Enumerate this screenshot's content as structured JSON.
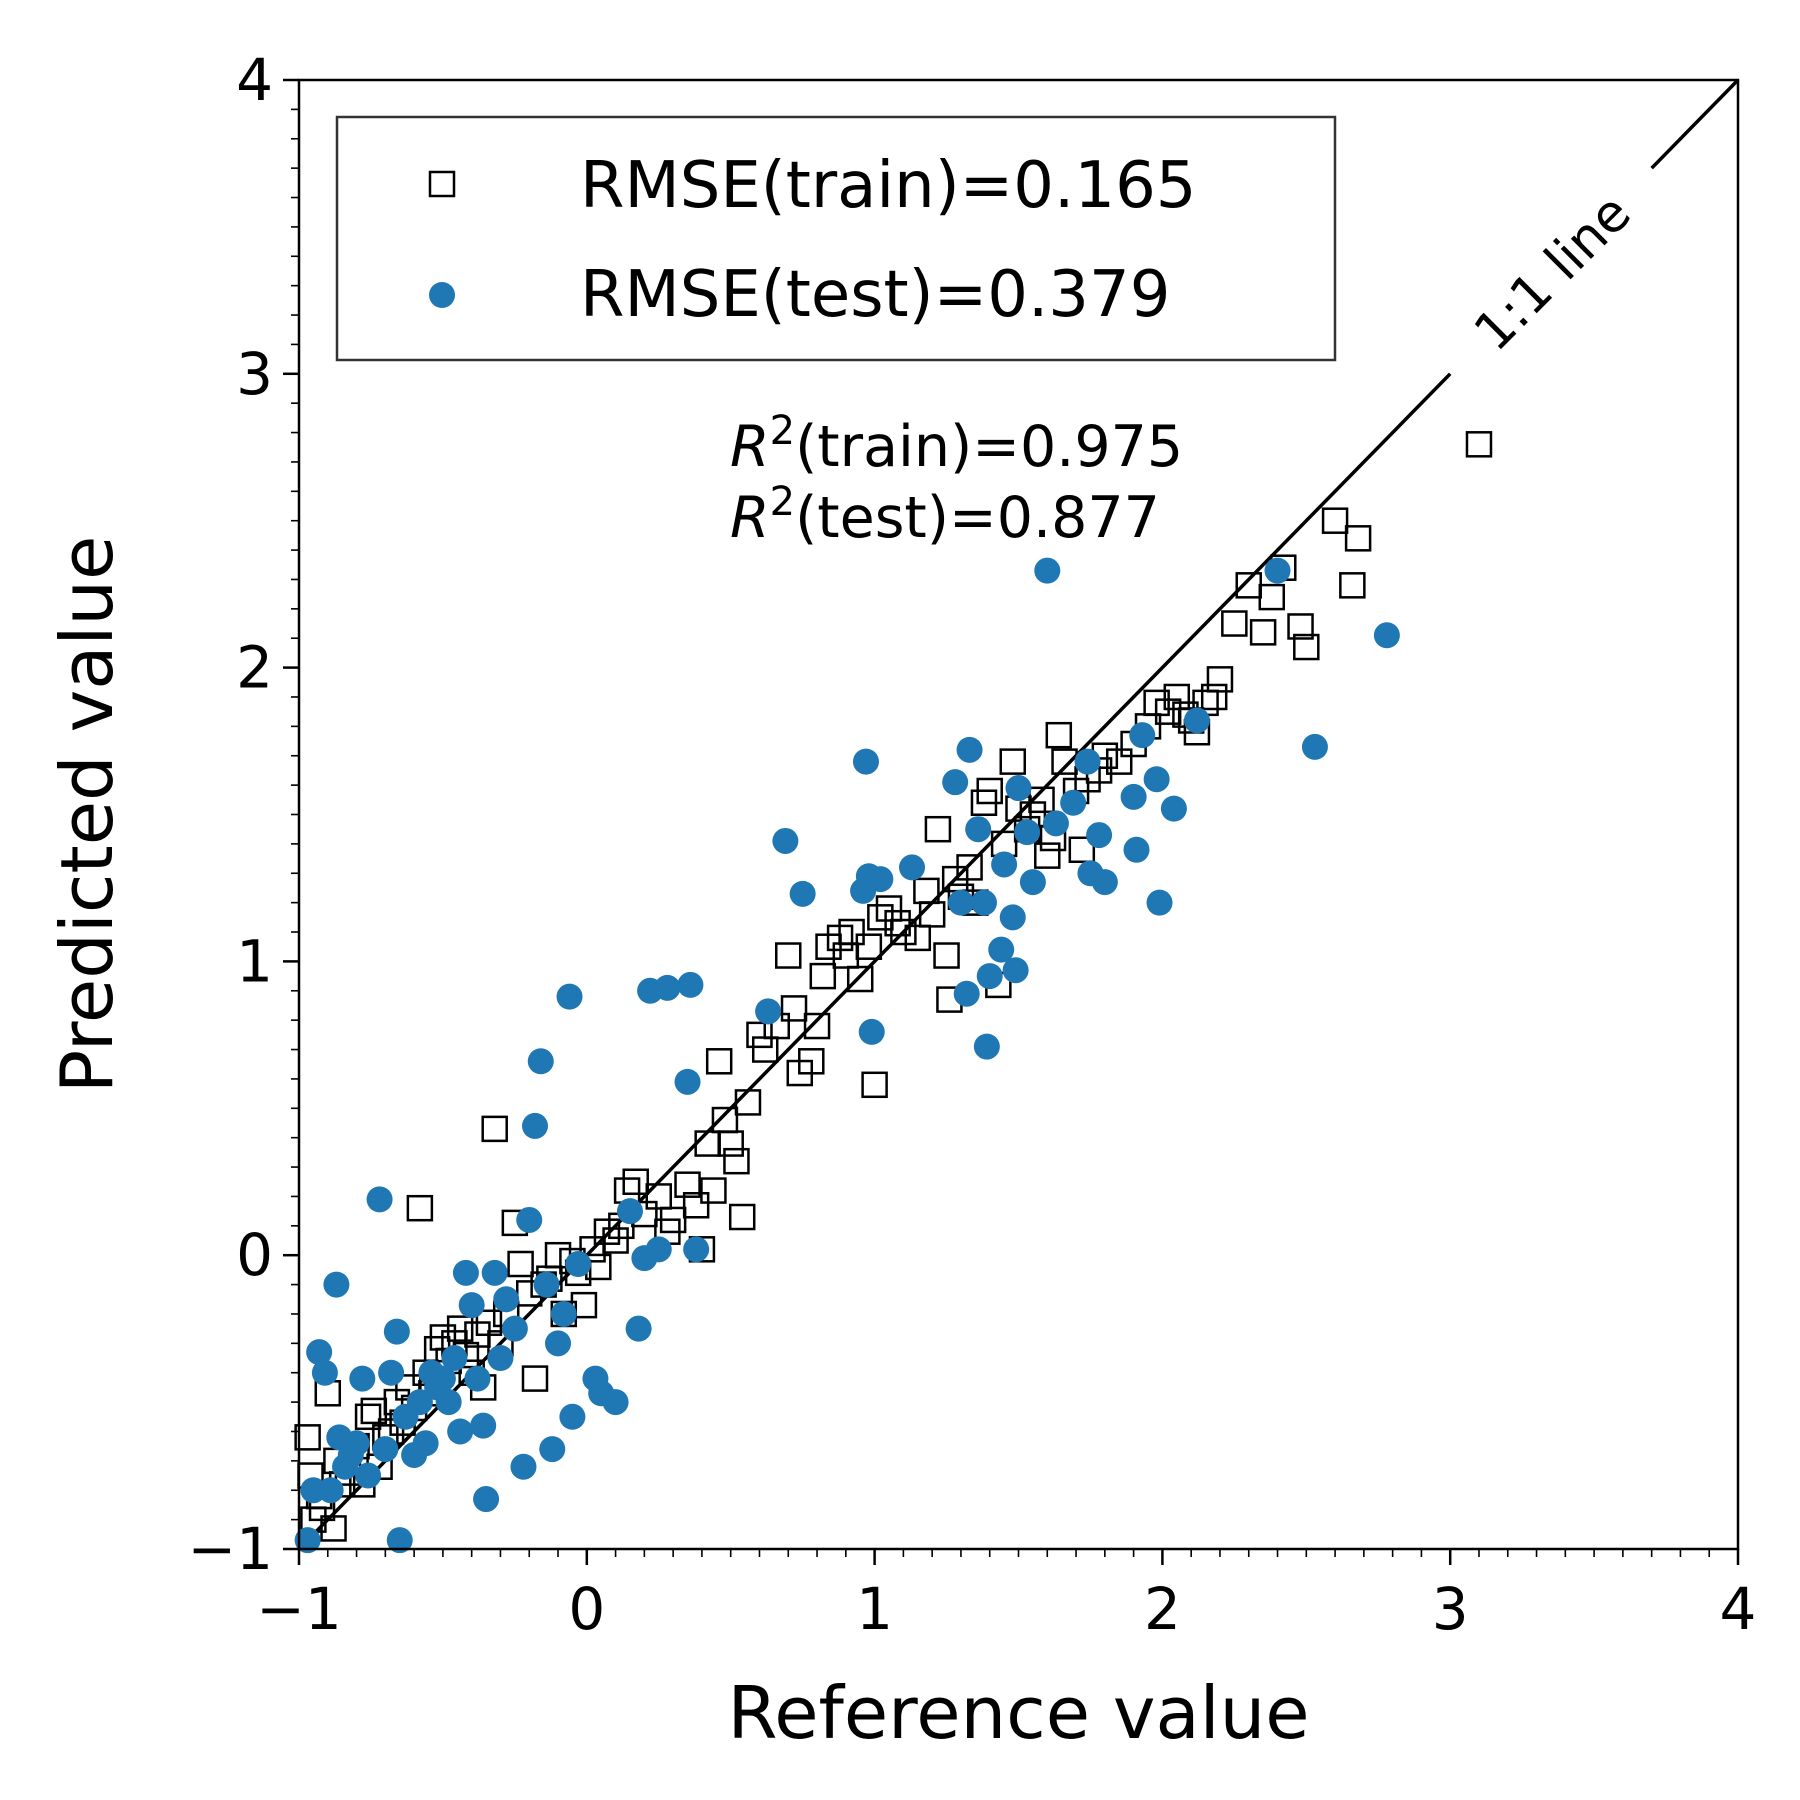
{
  "chart_data": {
    "type": "scatter",
    "xlabel": "Reference value",
    "ylabel": "Predicted value",
    "xlim": [
      -1,
      4
    ],
    "ylim": [
      -1,
      4
    ],
    "xticks": [
      "−1",
      "0",
      "1",
      "2",
      "3",
      "4"
    ],
    "yticks": [
      "−1",
      "0",
      "1",
      "2",
      "3",
      "4"
    ],
    "grid": false,
    "legend_placement": "top-left",
    "identity_line_label": "1:1 line",
    "annotations": {
      "r2_symbol": "R",
      "r2_exponent": "2",
      "r2_train_text": "(train)=0.975",
      "r2_test_text": "(test)=0.877"
    },
    "series": [
      {
        "name": "RMSE(train)=0.165",
        "marker": "open-square",
        "color": "#000000",
        "points": [
          [
            -0.97,
            -0.62
          ],
          [
            -0.96,
            -0.75
          ],
          [
            -0.95,
            -0.9
          ],
          [
            -0.93,
            -0.82
          ],
          [
            -0.92,
            -0.86
          ],
          [
            -0.9,
            -0.47
          ],
          [
            -0.88,
            -0.93
          ],
          [
            -0.87,
            -0.7
          ],
          [
            -0.85,
            -0.78
          ],
          [
            -0.83,
            -0.74
          ],
          [
            -0.8,
            -0.65
          ],
          [
            -0.78,
            -0.78
          ],
          [
            -0.76,
            -0.55
          ],
          [
            -0.74,
            -0.53
          ],
          [
            -0.72,
            -0.72
          ],
          [
            -0.7,
            -0.62
          ],
          [
            -0.68,
            -0.6
          ],
          [
            -0.66,
            -0.5
          ],
          [
            -0.64,
            -0.57
          ],
          [
            -0.62,
            -0.45
          ],
          [
            -0.6,
            -0.52
          ],
          [
            -0.58,
            0.16
          ],
          [
            -0.56,
            -0.4
          ],
          [
            -0.54,
            -0.47
          ],
          [
            -0.52,
            -0.32
          ],
          [
            -0.5,
            -0.28
          ],
          [
            -0.48,
            -0.36
          ],
          [
            -0.46,
            -0.3
          ],
          [
            -0.44,
            -0.25
          ],
          [
            -0.42,
            -0.34
          ],
          [
            -0.4,
            -0.4
          ],
          [
            -0.38,
            -0.27
          ],
          [
            -0.36,
            -0.45
          ],
          [
            -0.34,
            -0.23
          ],
          [
            -0.32,
            0.43
          ],
          [
            -0.3,
            -0.3
          ],
          [
            -0.28,
            -0.2
          ],
          [
            -0.25,
            0.11
          ],
          [
            -0.23,
            -0.03
          ],
          [
            -0.2,
            -0.13
          ],
          [
            -0.18,
            -0.42
          ],
          [
            -0.15,
            -0.1
          ],
          [
            -0.13,
            -0.08
          ],
          [
            -0.1,
            0.0
          ],
          [
            -0.08,
            -0.2
          ],
          [
            -0.05,
            -0.02
          ],
          [
            -0.03,
            -0.06
          ],
          [
            -0.01,
            -0.17
          ],
          [
            0.02,
            0.02
          ],
          [
            0.04,
            -0.04
          ],
          [
            0.07,
            0.08
          ],
          [
            0.1,
            0.05
          ],
          [
            0.12,
            0.1
          ],
          [
            0.14,
            0.22
          ],
          [
            0.17,
            0.25
          ],
          [
            0.2,
            0.14
          ],
          [
            0.25,
            0.2
          ],
          [
            0.28,
            0.08
          ],
          [
            0.3,
            0.12
          ],
          [
            0.35,
            0.24
          ],
          [
            0.38,
            0.17
          ],
          [
            0.4,
            0.02
          ],
          [
            0.42,
            0.38
          ],
          [
            0.44,
            0.22
          ],
          [
            0.46,
            0.66
          ],
          [
            0.48,
            0.46
          ],
          [
            0.5,
            0.38
          ],
          [
            0.52,
            0.32
          ],
          [
            0.54,
            0.13
          ],
          [
            0.56,
            0.52
          ],
          [
            0.6,
            0.75
          ],
          [
            0.62,
            0.7
          ],
          [
            0.66,
            0.78
          ],
          [
            0.7,
            1.02
          ],
          [
            0.72,
            0.84
          ],
          [
            0.74,
            0.62
          ],
          [
            0.78,
            0.66
          ],
          [
            0.8,
            0.78
          ],
          [
            0.82,
            0.95
          ],
          [
            0.84,
            1.05
          ],
          [
            0.88,
            1.08
          ],
          [
            0.9,
            1.02
          ],
          [
            0.92,
            1.1
          ],
          [
            0.95,
            0.94
          ],
          [
            0.98,
            1.05
          ],
          [
            1.0,
            0.58
          ],
          [
            1.02,
            1.15
          ],
          [
            1.05,
            1.18
          ],
          [
            1.08,
            1.13
          ],
          [
            1.1,
            1.1
          ],
          [
            1.15,
            1.08
          ],
          [
            1.18,
            1.24
          ],
          [
            1.2,
            1.16
          ],
          [
            1.22,
            1.45
          ],
          [
            1.25,
            1.02
          ],
          [
            1.26,
            0.87
          ],
          [
            1.28,
            1.28
          ],
          [
            1.3,
            1.22
          ],
          [
            1.33,
            1.32
          ],
          [
            1.35,
            1.2
          ],
          [
            1.38,
            1.54
          ],
          [
            1.4,
            1.58
          ],
          [
            1.43,
            0.92
          ],
          [
            1.45,
            1.4
          ],
          [
            1.48,
            1.68
          ],
          [
            1.5,
            1.52
          ],
          [
            1.53,
            1.45
          ],
          [
            1.55,
            1.5
          ],
          [
            1.58,
            1.55
          ],
          [
            1.6,
            1.36
          ],
          [
            1.62,
            1.42
          ],
          [
            1.64,
            1.77
          ],
          [
            1.66,
            1.68
          ],
          [
            1.7,
            1.58
          ],
          [
            1.72,
            1.38
          ],
          [
            1.74,
            1.62
          ],
          [
            1.78,
            1.65
          ],
          [
            1.8,
            1.7
          ],
          [
            1.85,
            1.68
          ],
          [
            1.9,
            1.74
          ],
          [
            1.95,
            1.8
          ],
          [
            1.98,
            1.88
          ],
          [
            2.02,
            1.85
          ],
          [
            2.05,
            1.9
          ],
          [
            2.08,
            1.84
          ],
          [
            2.1,
            1.82
          ],
          [
            2.12,
            1.78
          ],
          [
            2.15,
            1.88
          ],
          [
            2.18,
            1.9
          ],
          [
            2.2,
            1.96
          ],
          [
            2.25,
            2.15
          ],
          [
            2.3,
            2.28
          ],
          [
            2.35,
            2.12
          ],
          [
            2.38,
            2.24
          ],
          [
            2.42,
            2.34
          ],
          [
            2.48,
            2.14
          ],
          [
            2.5,
            2.07
          ],
          [
            2.6,
            2.5
          ],
          [
            2.66,
            2.28
          ],
          [
            2.68,
            2.44
          ],
          [
            3.1,
            2.76
          ]
        ]
      },
      {
        "name": "RMSE(test)=0.379",
        "marker": "filled-circle",
        "color": "#1f77b4",
        "points": [
          [
            -0.97,
            -0.97
          ],
          [
            -0.95,
            -0.8
          ],
          [
            -0.93,
            -0.33
          ],
          [
            -0.91,
            -0.4
          ],
          [
            -0.89,
            -0.8
          ],
          [
            -0.87,
            -0.1
          ],
          [
            -0.86,
            -0.62
          ],
          [
            -0.84,
            -0.72
          ],
          [
            -0.82,
            -0.68
          ],
          [
            -0.8,
            -0.64
          ],
          [
            -0.78,
            -0.42
          ],
          [
            -0.76,
            -0.75
          ],
          [
            -0.72,
            0.19
          ],
          [
            -0.7,
            -0.66
          ],
          [
            -0.68,
            -0.4
          ],
          [
            -0.66,
            -0.26
          ],
          [
            -0.65,
            -0.97
          ],
          [
            -0.63,
            -0.55
          ],
          [
            -0.6,
            -0.68
          ],
          [
            -0.58,
            -0.5
          ],
          [
            -0.56,
            -0.64
          ],
          [
            -0.54,
            -0.4
          ],
          [
            -0.52,
            -0.45
          ],
          [
            -0.5,
            -0.42
          ],
          [
            -0.48,
            -0.5
          ],
          [
            -0.46,
            -0.35
          ],
          [
            -0.44,
            -0.6
          ],
          [
            -0.42,
            -0.06
          ],
          [
            -0.4,
            -0.17
          ],
          [
            -0.38,
            -0.42
          ],
          [
            -0.36,
            -0.58
          ],
          [
            -0.35,
            -0.83
          ],
          [
            -0.32,
            -0.06
          ],
          [
            -0.3,
            -0.35
          ],
          [
            -0.28,
            -0.15
          ],
          [
            -0.25,
            -0.25
          ],
          [
            -0.22,
            -0.72
          ],
          [
            -0.2,
            0.12
          ],
          [
            -0.18,
            0.44
          ],
          [
            -0.16,
            0.66
          ],
          [
            -0.14,
            -0.1
          ],
          [
            -0.12,
            -0.66
          ],
          [
            -0.1,
            -0.3
          ],
          [
            -0.08,
            -0.2
          ],
          [
            -0.06,
            0.88
          ],
          [
            -0.05,
            -0.55
          ],
          [
            -0.03,
            -0.03
          ],
          [
            0.03,
            -0.42
          ],
          [
            0.05,
            -0.47
          ],
          [
            0.1,
            -0.5
          ],
          [
            0.15,
            0.15
          ],
          [
            0.18,
            -0.25
          ],
          [
            0.2,
            -0.01
          ],
          [
            0.22,
            0.9
          ],
          [
            0.25,
            0.02
          ],
          [
            0.28,
            0.91
          ],
          [
            0.35,
            0.59
          ],
          [
            0.36,
            0.92
          ],
          [
            0.38,
            0.02
          ],
          [
            0.63,
            0.83
          ],
          [
            0.69,
            1.41
          ],
          [
            0.75,
            1.23
          ],
          [
            0.96,
            1.24
          ],
          [
            0.97,
            1.68
          ],
          [
            0.98,
            1.29
          ],
          [
            0.99,
            0.76
          ],
          [
            1.02,
            1.28
          ],
          [
            1.13,
            1.32
          ],
          [
            1.28,
            1.61
          ],
          [
            1.3,
            1.2
          ],
          [
            1.32,
            0.89
          ],
          [
            1.33,
            1.72
          ],
          [
            1.36,
            1.45
          ],
          [
            1.38,
            1.2
          ],
          [
            1.39,
            0.71
          ],
          [
            1.4,
            0.95
          ],
          [
            1.44,
            1.04
          ],
          [
            1.45,
            1.33
          ],
          [
            1.48,
            1.15
          ],
          [
            1.49,
            0.97
          ],
          [
            1.5,
            1.59
          ],
          [
            1.53,
            1.44
          ],
          [
            1.55,
            1.27
          ],
          [
            1.63,
            1.47
          ],
          [
            1.69,
            1.54
          ],
          [
            1.74,
            1.68
          ],
          [
            1.75,
            1.3
          ],
          [
            1.78,
            1.43
          ],
          [
            1.8,
            1.27
          ],
          [
            1.9,
            1.56
          ],
          [
            1.91,
            1.38
          ],
          [
            1.93,
            1.77
          ],
          [
            1.98,
            1.62
          ],
          [
            1.99,
            1.2
          ],
          [
            2.04,
            1.52
          ],
          [
            2.12,
            1.82
          ],
          [
            2.4,
            2.33
          ],
          [
            2.53,
            1.73
          ],
          [
            2.78,
            2.11
          ],
          [
            1.6,
            2.33
          ]
        ]
      }
    ]
  }
}
